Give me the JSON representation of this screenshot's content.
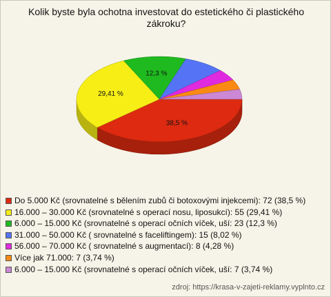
{
  "chart_data": {
    "type": "pie",
    "title": "Kolik byste byla ochotna investovat do estetického či plastického zákroku?",
    "categories": [
      "Do 5.000 Kč (srovnatelné s bělením zubů či botoxovými injekcemi): 72 (38,5 %)",
      "16.000 – 30.000 Kč (srovnatelné s operací nosu, liposukcí): 55 (29,41 %)",
      "6.000 – 15.000 Kč  (srovnatelné s operací očních víček, uší: 23 (12,3 %)",
      "31.000 – 50.000 Kč ( srovnatelné s faceliftingem): 15 (8,02 %)",
      "56.000 – 70.000 Kč ( srovnatelné s augmentací): 8 (4,28 %)",
      "Více jak 71.000: 7 (3,74 %)",
      "6.000 – 15.000 Kč (srovnatelné s operací očních víček, uší: 7 (3,74 %)"
    ],
    "values": [
      38.5,
      29.41,
      12.3,
      8.02,
      4.28,
      3.74,
      3.74
    ],
    "value_labels": [
      "38,5 %",
      "29,41 %",
      "12,3 %",
      null,
      null,
      null,
      null
    ],
    "colors": [
      "#dd2a10",
      "#f7ee16",
      "#1fba1f",
      "#5574f5",
      "#e02ae0",
      "#fb8a14",
      "#cc88d4"
    ],
    "source": "zdroj: https://krasa-v-zajeti-reklamy.vyplnto.cz"
  }
}
